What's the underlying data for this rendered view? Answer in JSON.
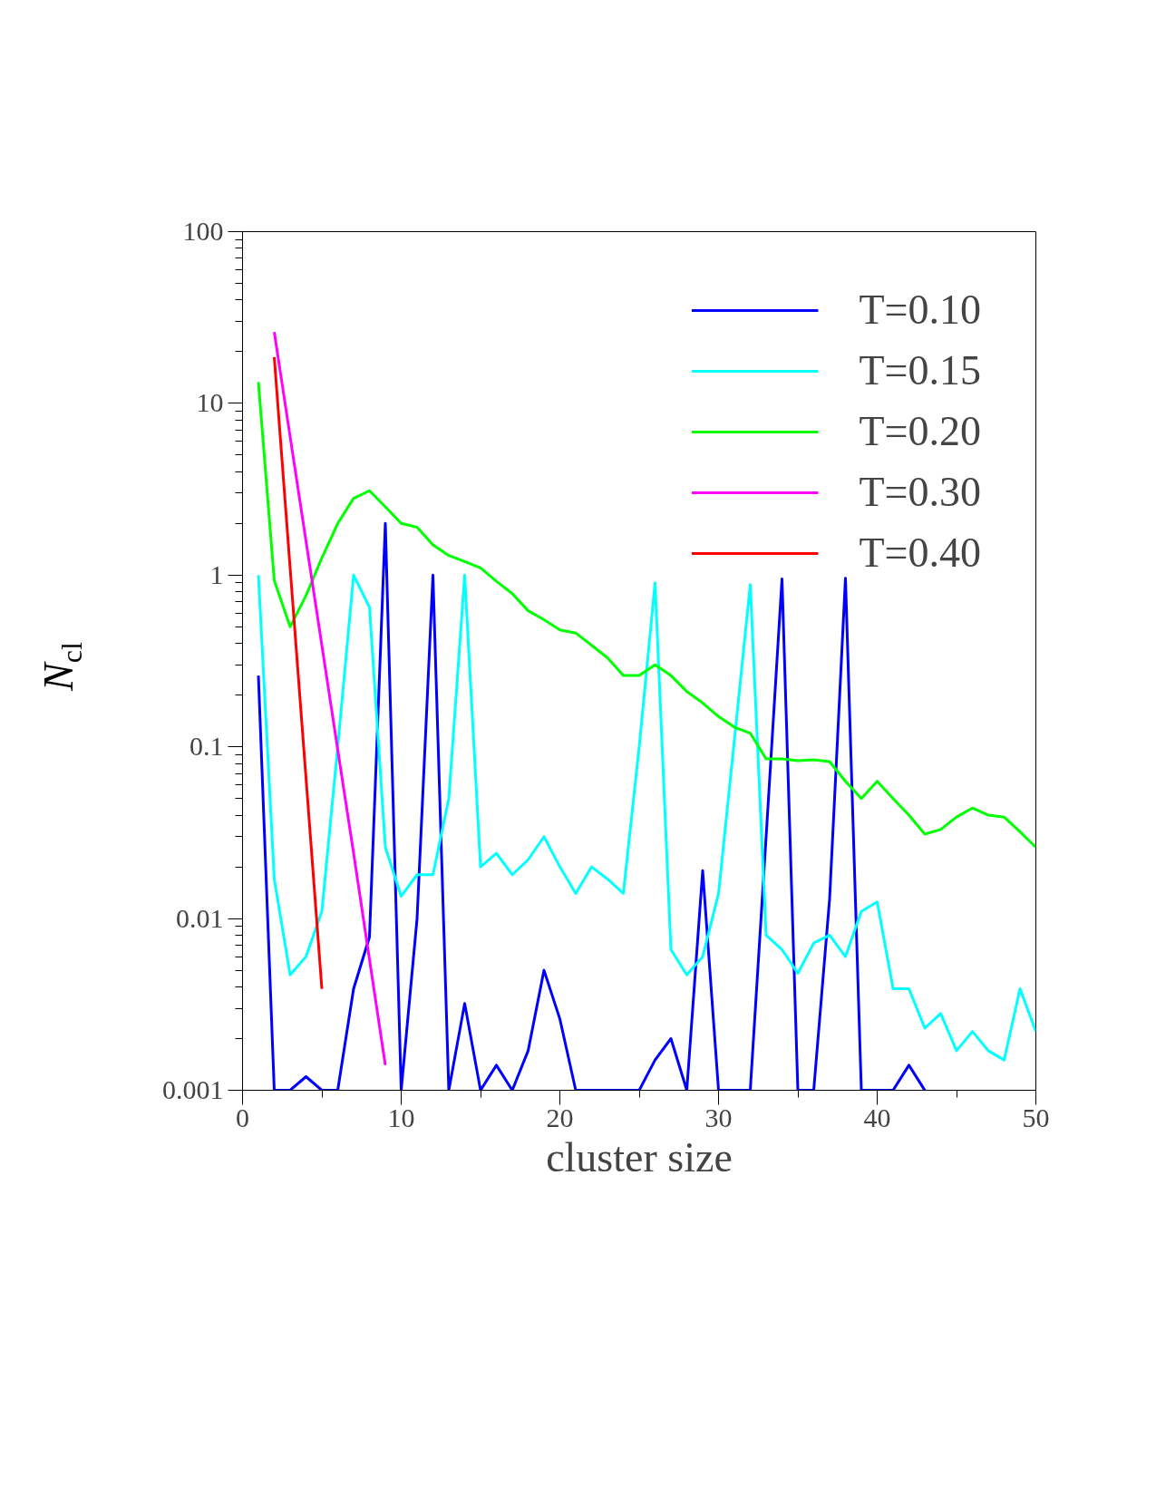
{
  "chart_data": {
    "type": "line",
    "xlabel": "cluster size",
    "ylabel": "N$_{cl}$",
    "log": "y",
    "xlim": [
      0,
      50
    ],
    "ylim": [
      0.001,
      100
    ],
    "xticks": [
      0,
      10,
      20,
      30,
      40,
      50
    ],
    "yticks": [
      0.001,
      0.01,
      0.1,
      1,
      10,
      100
    ],
    "grid": false,
    "legend": "top right",
    "line_style": "solid",
    "marker": "none",
    "series": [
      {
        "name": "T=0.10",
        "color": "#0000ff",
        "x": [
          1,
          2,
          3,
          4,
          5,
          6,
          7,
          8,
          9,
          10,
          11,
          12,
          13,
          14,
          15,
          16,
          17,
          18,
          19,
          20,
          21,
          22,
          23,
          24,
          25,
          26,
          27,
          28,
          29,
          30,
          31,
          32,
          33,
          34,
          35,
          36,
          37,
          38,
          39,
          40,
          41,
          42,
          43
        ],
        "values": [
          0.26,
          0.001,
          0.001,
          0.0012,
          0.001,
          0.001,
          0.0039,
          0.0078,
          2.0,
          0.001,
          0.01,
          1.0,
          0.001,
          0.0032,
          0.001,
          0.0014,
          0.001,
          0.0017,
          0.005,
          0.0026,
          0.001,
          0.001,
          0.001,
          0.001,
          0.001,
          0.0015,
          0.002,
          0.001,
          0.019,
          0.001,
          0.001,
          0.001,
          0.03,
          0.95,
          0.001,
          0.001,
          0.013,
          0.96,
          0.001,
          0.001,
          0.001,
          0.0014,
          0.001
        ]
      },
      {
        "name": "T=0.15",
        "color": "#00ffff",
        "x": [
          1,
          2,
          3,
          4,
          5,
          6,
          7,
          8,
          9,
          10,
          11,
          12,
          13,
          14,
          15,
          16,
          17,
          18,
          19,
          20,
          21,
          22,
          23,
          24,
          25,
          26,
          27,
          28,
          29,
          30,
          31,
          32,
          33,
          34,
          35,
          36,
          37,
          38,
          39,
          40,
          41,
          42,
          43,
          44,
          45,
          46,
          47,
          48,
          49,
          50
        ],
        "values": [
          1.0,
          0.017,
          0.0047,
          0.006,
          0.011,
          0.1,
          1.0,
          0.65,
          0.026,
          0.0135,
          0.018,
          0.018,
          0.05,
          1.0,
          0.02,
          0.024,
          0.018,
          0.022,
          0.03,
          0.02,
          0.014,
          0.02,
          0.017,
          0.014,
          0.1,
          0.9,
          0.0066,
          0.0047,
          0.006,
          0.014,
          0.11,
          0.88,
          0.008,
          0.0066,
          0.0048,
          0.0072,
          0.008,
          0.006,
          0.011,
          0.0125,
          0.0039,
          0.0039,
          0.0023,
          0.0028,
          0.0017,
          0.0022,
          0.0017,
          0.0015,
          0.0039,
          0.0022
        ]
      },
      {
        "name": "T=0.20",
        "color": "#00ff00",
        "x": [
          1,
          2,
          3,
          4,
          5,
          6,
          7,
          8,
          9,
          10,
          11,
          12,
          13,
          14,
          15,
          16,
          17,
          18,
          19,
          20,
          21,
          22,
          23,
          24,
          25,
          26,
          27,
          28,
          29,
          30,
          31,
          32,
          33,
          34,
          35,
          36,
          37,
          38,
          39,
          40,
          41,
          42,
          43,
          44,
          45,
          46,
          47,
          48,
          49,
          50
        ],
        "values": [
          13.3,
          0.93,
          0.5,
          0.76,
          1.26,
          2.0,
          2.8,
          3.1,
          2.5,
          2.0,
          1.9,
          1.5,
          1.3,
          1.2,
          1.1,
          0.92,
          0.78,
          0.62,
          0.55,
          0.48,
          0.46,
          0.39,
          0.33,
          0.26,
          0.26,
          0.3,
          0.26,
          0.21,
          0.18,
          0.15,
          0.13,
          0.12,
          0.085,
          0.085,
          0.083,
          0.084,
          0.082,
          0.063,
          0.05,
          0.063,
          0.05,
          0.04,
          0.031,
          0.033,
          0.039,
          0.044,
          0.04,
          0.039,
          0.032,
          0.026
        ]
      },
      {
        "name": "T=0.30",
        "color": "#ff00ff",
        "x": [
          2,
          3,
          4,
          5,
          6,
          7,
          8,
          9
        ],
        "values": [
          26,
          6.4,
          1.58,
          0.39,
          0.096,
          0.024,
          0.0058,
          0.0014
        ]
      },
      {
        "name": "T=0.40",
        "color": "#ff0000",
        "x": [
          2,
          3,
          4,
          5
        ],
        "values": [
          18.6,
          1.1,
          0.066,
          0.0039
        ]
      }
    ]
  }
}
